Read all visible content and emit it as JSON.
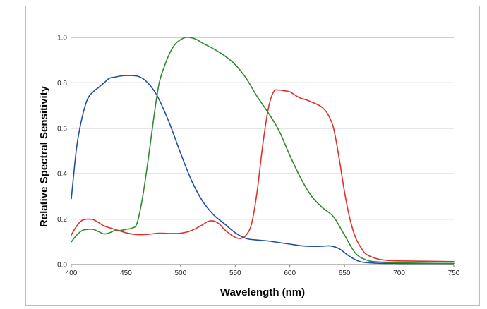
{
  "chart_data": {
    "type": "line",
    "title": "",
    "xlabel": "Wavelength (nm)",
    "ylabel": "Relative Spectral Sensitivity",
    "xlim": [
      400,
      750
    ],
    "ylim": [
      0,
      1.0
    ],
    "xticks": [
      "400",
      "450",
      "500",
      "550",
      "600",
      "650",
      "700",
      "750"
    ],
    "yticks": [
      "0.0",
      "0.2",
      "0.4",
      "0.6",
      "0.8",
      "1.0"
    ],
    "grid": "horizontal",
    "legend": "none",
    "series": [
      {
        "color": "#1f4fa0",
        "x": [
          400,
          405,
          410,
          415,
          420,
          425,
          430,
          435,
          440,
          445,
          450,
          455,
          460,
          465,
          470,
          475,
          480,
          490,
          500,
          510,
          520,
          530,
          540,
          550,
          560,
          570,
          580,
          590,
          600,
          610,
          620,
          630,
          637,
          645,
          655,
          665,
          680,
          700,
          720,
          750
        ],
        "y": [
          0.29,
          0.52,
          0.65,
          0.73,
          0.76,
          0.78,
          0.8,
          0.82,
          0.825,
          0.83,
          0.832,
          0.832,
          0.83,
          0.82,
          0.8,
          0.77,
          0.73,
          0.62,
          0.49,
          0.37,
          0.28,
          0.22,
          0.18,
          0.14,
          0.115,
          0.108,
          0.104,
          0.097,
          0.09,
          0.083,
          0.08,
          0.081,
          0.082,
          0.07,
          0.035,
          0.012,
          0.006,
          0.005,
          0.005,
          0.005
        ]
      },
      {
        "color": "#2e8b2e",
        "x": [
          400,
          405,
          410,
          415,
          420,
          425,
          430,
          435,
          440,
          445,
          450,
          455,
          460,
          465,
          470,
          475,
          480,
          485,
          490,
          495,
          500,
          505,
          510,
          515,
          520,
          530,
          540,
          550,
          560,
          570,
          580,
          590,
          600,
          610,
          620,
          630,
          640,
          650,
          660,
          670,
          680,
          700,
          720,
          750
        ],
        "y": [
          0.1,
          0.13,
          0.15,
          0.155,
          0.155,
          0.145,
          0.135,
          0.14,
          0.15,
          0.15,
          0.155,
          0.16,
          0.18,
          0.29,
          0.45,
          0.63,
          0.79,
          0.87,
          0.93,
          0.97,
          0.99,
          1.0,
          0.998,
          0.99,
          0.975,
          0.95,
          0.92,
          0.88,
          0.82,
          0.74,
          0.67,
          0.59,
          0.48,
          0.38,
          0.3,
          0.25,
          0.21,
          0.13,
          0.05,
          0.02,
          0.012,
          0.008,
          0.006,
          0.005
        ]
      },
      {
        "color": "#e0302a",
        "x": [
          400,
          405,
          410,
          415,
          420,
          425,
          430,
          440,
          450,
          460,
          470,
          480,
          490,
          500,
          510,
          520,
          525,
          530,
          535,
          540,
          545,
          550,
          555,
          560,
          565,
          570,
          575,
          580,
          585,
          590,
          595,
          600,
          605,
          610,
          615,
          620,
          625,
          630,
          635,
          640,
          645,
          650,
          655,
          660,
          665,
          670,
          680,
          690,
          700,
          720,
          750
        ],
        "y": [
          0.13,
          0.17,
          0.195,
          0.2,
          0.198,
          0.185,
          0.17,
          0.155,
          0.14,
          0.132,
          0.133,
          0.138,
          0.137,
          0.138,
          0.15,
          0.175,
          0.19,
          0.192,
          0.18,
          0.155,
          0.135,
          0.12,
          0.115,
          0.13,
          0.18,
          0.32,
          0.52,
          0.68,
          0.76,
          0.768,
          0.765,
          0.76,
          0.745,
          0.732,
          0.725,
          0.715,
          0.705,
          0.69,
          0.66,
          0.6,
          0.47,
          0.32,
          0.2,
          0.12,
          0.075,
          0.045,
          0.025,
          0.018,
          0.016,
          0.015,
          0.013
        ]
      }
    ]
  }
}
